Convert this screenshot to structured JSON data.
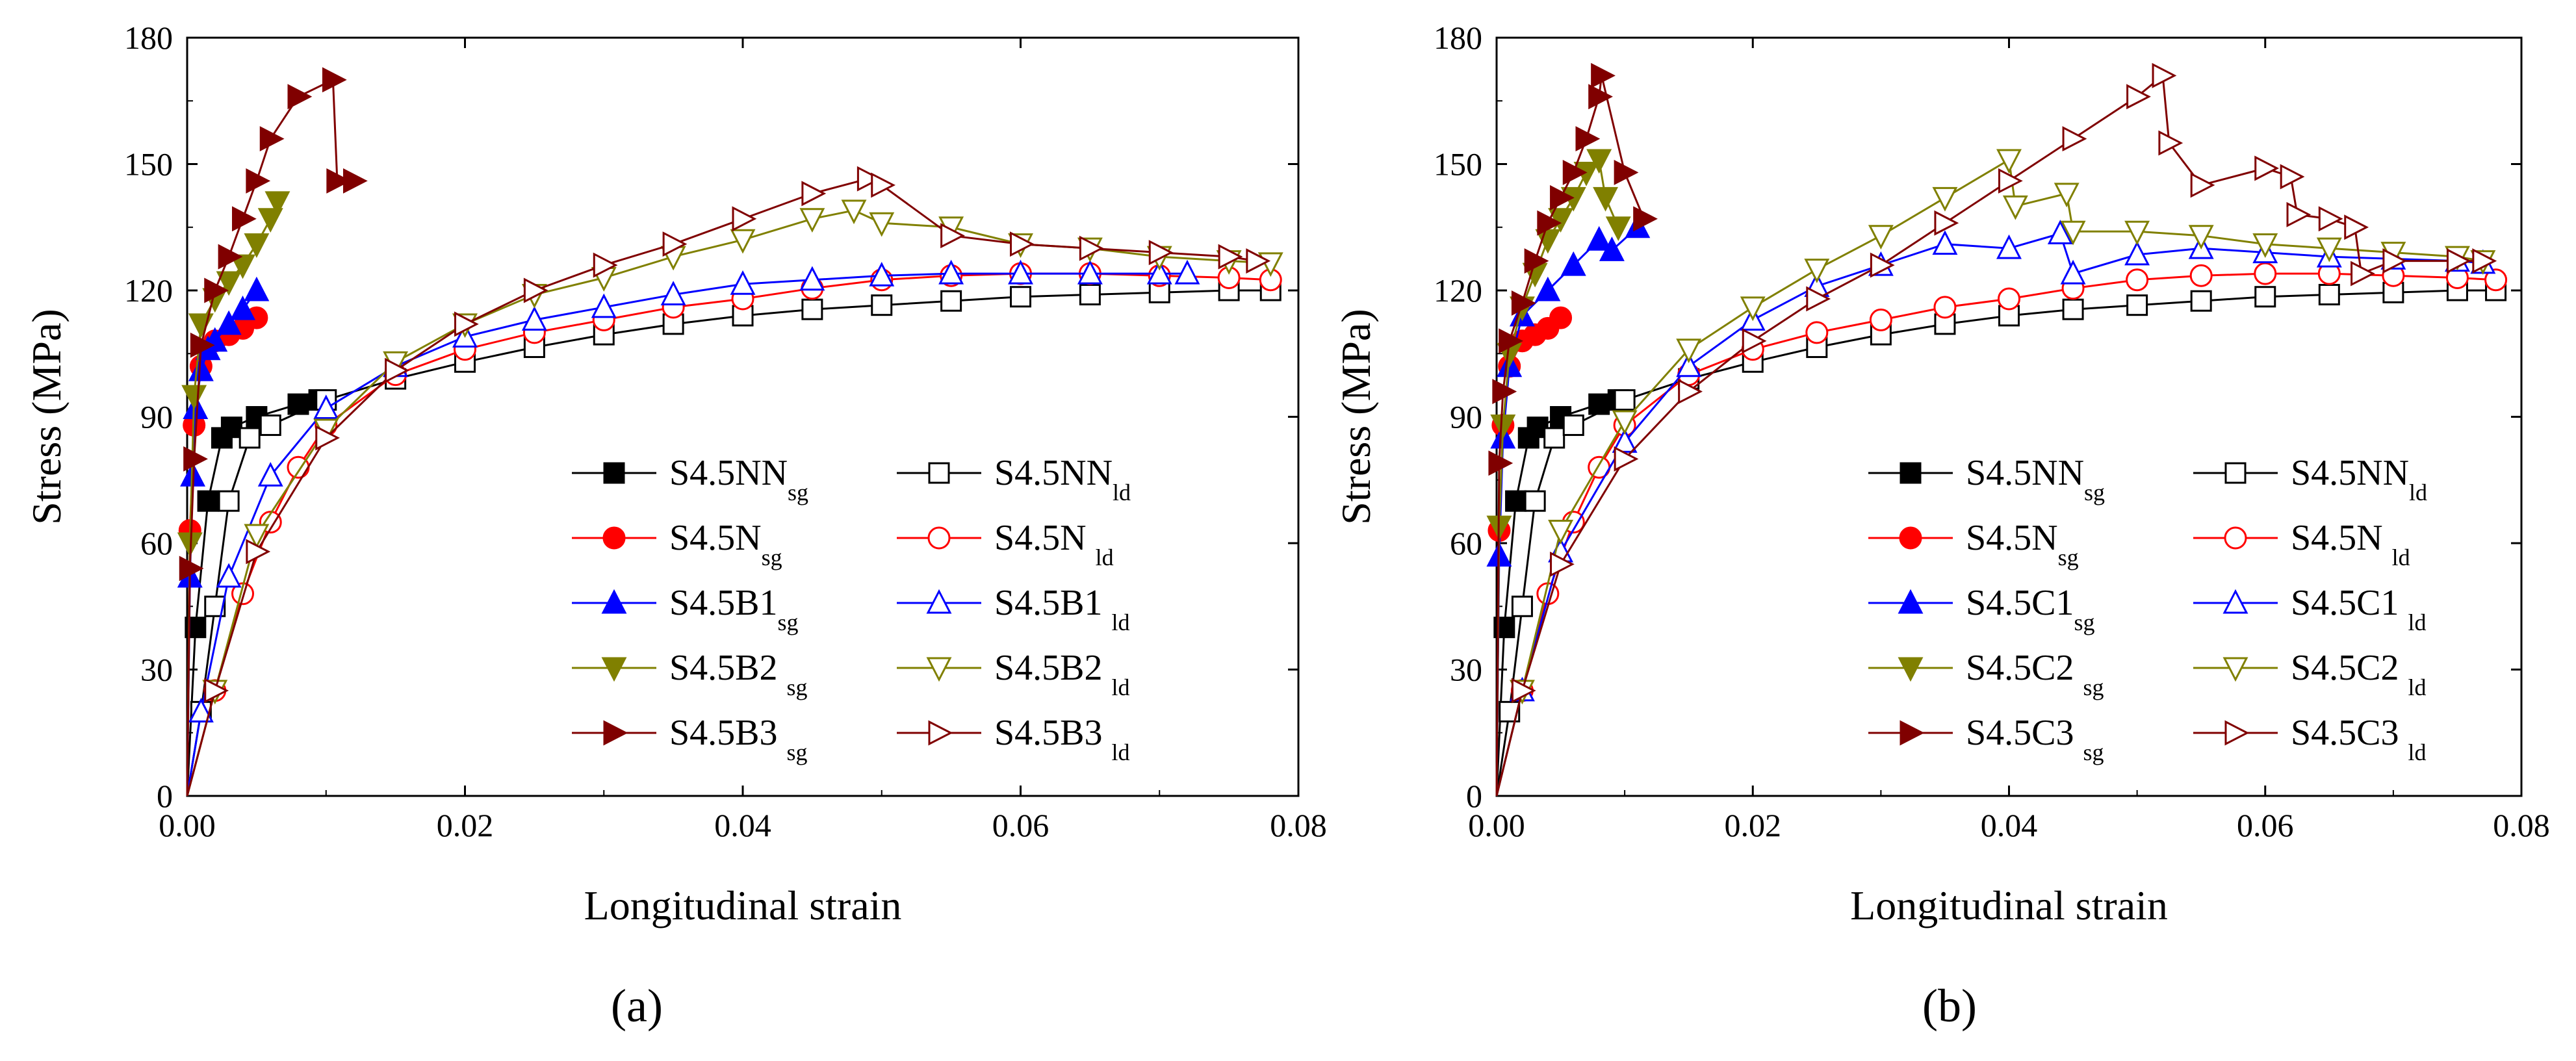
{
  "chart_data": [
    {
      "type": "line",
      "panel_label": "(a)",
      "xlabel": "Longitudinal strain",
      "ylabel": "Stress  (MPa)",
      "xlim": [
        0,
        0.08
      ],
      "ylim": [
        0,
        180
      ],
      "xticks": [
        "0.00",
        "0.02",
        "0.04",
        "0.06",
        "0.08"
      ],
      "yticks": [
        "0",
        "30",
        "60",
        "90",
        "120",
        "150",
        "180"
      ],
      "grid": false,
      "legend_position": "lower-right",
      "series": [
        {
          "name": "S4.5NN",
          "sub": "sg",
          "color": "#000000",
          "marker": "square",
          "filled": true,
          "x": [
            0,
            0.0006,
            0.0015,
            0.0025,
            0.0032,
            0.005,
            0.008,
            0.0095
          ],
          "y": [
            0,
            40,
            70,
            85,
            87.5,
            90,
            93,
            94
          ]
        },
        {
          "name": "S4.5NN",
          "sub": "ld",
          "color": "#000000",
          "marker": "square",
          "filled": false,
          "x": [
            0,
            0.001,
            0.002,
            0.003,
            0.0045,
            0.006,
            0.01,
            0.015,
            0.02,
            0.025,
            0.03,
            0.035,
            0.04,
            0.045,
            0.05,
            0.055,
            0.06,
            0.065,
            0.07,
            0.075,
            0.078
          ],
          "y": [
            0,
            20,
            45,
            70,
            85,
            88,
            94,
            99,
            103,
            106.5,
            109.5,
            112,
            114,
            115.5,
            116.5,
            117.5,
            118.5,
            119,
            119.5,
            120,
            120
          ]
        },
        {
          "name": "S4.5N",
          "sub": "sg",
          "color": "#ff0000",
          "marker": "circle",
          "filled": true,
          "x": [
            0,
            0.0002,
            0.0005,
            0.001,
            0.002,
            0.003,
            0.004,
            0.005
          ],
          "y": [
            0,
            63,
            88,
            102,
            108,
            109.5,
            111,
            113.5
          ]
        },
        {
          "name": "S4.5N",
          "sub": "ld",
          "color": "#ff0000",
          "marker": "circle",
          "filled": false,
          "x": [
            0,
            0.002,
            0.004,
            0.006,
            0.008,
            0.01,
            0.015,
            0.02,
            0.025,
            0.03,
            0.035,
            0.04,
            0.045,
            0.05,
            0.055,
            0.06,
            0.065,
            0.07,
            0.075,
            0.078
          ],
          "y": [
            0,
            25,
            48,
            65,
            78,
            88,
            100,
            106,
            110,
            113,
            116,
            118,
            120.5,
            122.5,
            123.5,
            124,
            124,
            123.5,
            123,
            122.5
          ]
        },
        {
          "name": "S4.5B1",
          "sub": "sg",
          "color": "#0000ff",
          "marker": "triangle-up",
          "filled": true,
          "x": [
            0,
            0.0002,
            0.0004,
            0.0006,
            0.001,
            0.0015,
            0.002,
            0.003,
            0.004,
            0.005
          ],
          "y": [
            0,
            52,
            76,
            92,
            101,
            106,
            108,
            112,
            115.5,
            120
          ]
        },
        {
          "name": "S4.5B1",
          "sub": "ld",
          "color": "#0000ff",
          "marker": "triangle-up",
          "filled": false,
          "x": [
            0,
            0.001,
            0.003,
            0.006,
            0.01,
            0.015,
            0.02,
            0.025,
            0.03,
            0.035,
            0.04,
            0.045,
            0.05,
            0.055,
            0.06,
            0.065,
            0.07,
            0.072
          ],
          "y": [
            0,
            20,
            52,
            76,
            92,
            102,
            109,
            113,
            116,
            119,
            121.5,
            122.5,
            123.5,
            124,
            124,
            124,
            124,
            124
          ]
        },
        {
          "name": "S4.5B2",
          "sub": "sg",
          "color": "#808000",
          "marker": "triangle-down",
          "filled": true,
          "x": [
            0,
            0.0002,
            0.0005,
            0.001,
            0.002,
            0.003,
            0.004,
            0.005,
            0.006,
            0.0065
          ],
          "y": [
            0,
            60,
            95,
            112,
            118,
            122,
            126,
            131,
            137,
            141
          ]
        },
        {
          "name": "S4.5B2",
          "sub": "ld",
          "color": "#808000",
          "marker": "triangle-down",
          "filled": false,
          "x": [
            0,
            0.002,
            0.005,
            0.01,
            0.015,
            0.02,
            0.025,
            0.03,
            0.035,
            0.04,
            0.045,
            0.048,
            0.05,
            0.055,
            0.06,
            0.065,
            0.07,
            0.075,
            0.078
          ],
          "y": [
            0,
            25,
            62,
            87,
            103,
            112,
            119,
            123,
            128,
            132,
            137,
            139,
            136,
            135,
            131,
            130,
            128,
            127,
            126.5
          ]
        },
        {
          "name": "S4.5B3",
          "sub": "sg",
          "color": "#800000",
          "marker": "triangle-right",
          "filled": true,
          "x": [
            0,
            0.0002,
            0.0005,
            0.001,
            0.002,
            0.003,
            0.004,
            0.005,
            0.006,
            0.008,
            0.0105,
            0.0108,
            0.012
          ],
          "y": [
            0,
            54,
            80,
            107,
            120,
            128,
            137,
            146,
            156,
            166,
            170,
            146,
            146
          ]
        },
        {
          "name": "S4.5B3",
          "sub": "ld",
          "color": "#800000",
          "marker": "triangle-right",
          "filled": false,
          "x": [
            0,
            0.002,
            0.005,
            0.01,
            0.015,
            0.02,
            0.025,
            0.03,
            0.035,
            0.04,
            0.045,
            0.049,
            0.05,
            0.055,
            0.06,
            0.065,
            0.07,
            0.075,
            0.077
          ],
          "y": [
            0,
            25,
            58,
            85,
            101,
            112,
            120,
            126,
            131,
            137,
            143,
            146.5,
            145,
            133,
            131,
            130,
            129,
            128,
            127
          ]
        }
      ],
      "legend": [
        {
          "label": "S4.5NN",
          "sub": "sg"
        },
        {
          "label": "S4.5NN",
          "sub": "ld"
        },
        {
          "label": "S4.5N",
          "sub": "sg"
        },
        {
          "label": "S4.5N ",
          "sub": "ld"
        },
        {
          "label": "S4.5B1",
          "sub": "sg"
        },
        {
          "label": "S4.5B1 ",
          "sub": "ld"
        },
        {
          "label": "S4.5B2 ",
          "sub": "sg"
        },
        {
          "label": "S4.5B2 ",
          "sub": "ld"
        },
        {
          "label": "S4.5B3 ",
          "sub": "sg"
        },
        {
          "label": "S4.5B3 ",
          "sub": "ld"
        }
      ]
    },
    {
      "type": "line",
      "panel_label": "(b)",
      "xlabel": "Longitudinal strain",
      "ylabel": "Stress  (MPa)",
      "xlim": [
        0,
        0.08
      ],
      "ylim": [
        0,
        180
      ],
      "xticks": [
        "0.00",
        "0.02",
        "0.04",
        "0.06",
        "0.08"
      ],
      "yticks": [
        "0",
        "30",
        "60",
        "90",
        "120",
        "150",
        "180"
      ],
      "grid": false,
      "legend_position": "lower-right",
      "series": [
        {
          "name": "S4.5NN",
          "sub": "sg",
          "color": "#000000",
          "marker": "square",
          "filled": true,
          "x": [
            0,
            0.0006,
            0.0015,
            0.0025,
            0.0032,
            0.005,
            0.008,
            0.0095
          ],
          "y": [
            0,
            40,
            70,
            85,
            87.5,
            90,
            93,
            94
          ]
        },
        {
          "name": "S4.5NN",
          "sub": "ld",
          "color": "#000000",
          "marker": "square",
          "filled": false,
          "x": [
            0,
            0.001,
            0.002,
            0.003,
            0.0045,
            0.006,
            0.01,
            0.015,
            0.02,
            0.025,
            0.03,
            0.035,
            0.04,
            0.045,
            0.05,
            0.055,
            0.06,
            0.065,
            0.07,
            0.075,
            0.078
          ],
          "y": [
            0,
            20,
            45,
            70,
            85,
            88,
            94,
            99,
            103,
            106.5,
            109.5,
            112,
            114,
            115.5,
            116.5,
            117.5,
            118.5,
            119,
            119.5,
            120,
            120
          ]
        },
        {
          "name": "S4.5N",
          "sub": "sg",
          "color": "#ff0000",
          "marker": "circle",
          "filled": true,
          "x": [
            0,
            0.0002,
            0.0005,
            0.001,
            0.002,
            0.003,
            0.004,
            0.005
          ],
          "y": [
            0,
            63,
            88,
            102,
            108,
            109.5,
            111,
            113.5
          ]
        },
        {
          "name": "S4.5N",
          "sub": "ld",
          "color": "#ff0000",
          "marker": "circle",
          "filled": false,
          "x": [
            0,
            0.002,
            0.004,
            0.006,
            0.008,
            0.01,
            0.015,
            0.02,
            0.025,
            0.03,
            0.035,
            0.04,
            0.045,
            0.05,
            0.055,
            0.06,
            0.065,
            0.07,
            0.075,
            0.078
          ],
          "y": [
            0,
            25,
            48,
            65,
            78,
            88,
            100,
            106,
            110,
            113,
            116,
            118,
            120.5,
            122.5,
            123.5,
            124,
            124,
            123.5,
            123,
            122.5
          ]
        },
        {
          "name": "S4.5C1",
          "sub": "sg",
          "color": "#0000ff",
          "marker": "triangle-up",
          "filled": true,
          "x": [
            0,
            0.0002,
            0.0005,
            0.001,
            0.002,
            0.004,
            0.006,
            0.008,
            0.009,
            0.011
          ],
          "y": [
            0,
            57,
            85,
            102,
            114,
            120,
            126,
            132,
            129.5,
            135
          ]
        },
        {
          "name": "S4.5C1",
          "sub": "ld",
          "color": "#0000ff",
          "marker": "triangle-up",
          "filled": false,
          "x": [
            0,
            0.002,
            0.005,
            0.01,
            0.015,
            0.02,
            0.025,
            0.03,
            0.035,
            0.04,
            0.044,
            0.045,
            0.05,
            0.055,
            0.06,
            0.065,
            0.07,
            0.075,
            0.077
          ],
          "y": [
            0,
            25,
            58,
            84,
            102,
            113,
            121,
            126,
            131,
            130,
            133.5,
            124,
            128.5,
            130,
            129,
            128,
            127.5,
            127,
            126.5
          ]
        },
        {
          "name": "S4.5C2",
          "sub": "sg",
          "color": "#808000",
          "marker": "triangle-down",
          "filled": true,
          "x": [
            0,
            0.0002,
            0.0005,
            0.001,
            0.002,
            0.003,
            0.004,
            0.005,
            0.006,
            0.007,
            0.008,
            0.0085,
            0.0095
          ],
          "y": [
            0,
            64,
            88,
            105,
            116,
            124,
            132,
            137,
            142,
            148,
            151,
            142,
            135
          ]
        },
        {
          "name": "S4.5C2",
          "sub": "ld",
          "color": "#808000",
          "marker": "triangle-down",
          "filled": false,
          "x": [
            0,
            0.002,
            0.005,
            0.01,
            0.015,
            0.02,
            0.025,
            0.03,
            0.035,
            0.04,
            0.0405,
            0.0445,
            0.045,
            0.05,
            0.055,
            0.06,
            0.065,
            0.07,
            0.075,
            0.077
          ],
          "y": [
            0,
            25,
            63,
            89,
            106,
            116,
            125,
            133,
            142,
            151,
            140,
            143,
            134,
            134,
            133,
            131,
            130,
            129,
            128,
            127
          ]
        },
        {
          "name": "S4.5C3",
          "sub": "sg",
          "color": "#800000",
          "marker": "triangle-right",
          "filled": true,
          "x": [
            0,
            0.0002,
            0.0005,
            0.001,
            0.002,
            0.003,
            0.004,
            0.005,
            0.006,
            0.007,
            0.008,
            0.0082,
            0.01,
            0.0115
          ],
          "y": [
            0,
            79,
            96,
            108,
            117,
            127,
            136,
            142,
            148,
            156,
            166,
            171,
            148,
            137
          ]
        },
        {
          "name": "S4.5C3",
          "sub": "ld",
          "color": "#800000",
          "marker": "triangle-right",
          "filled": false,
          "x": [
            0,
            0.002,
            0.005,
            0.01,
            0.015,
            0.02,
            0.025,
            0.03,
            0.035,
            0.04,
            0.045,
            0.05,
            0.052,
            0.0525,
            0.055,
            0.06,
            0.062,
            0.0625,
            0.065,
            0.067,
            0.0675,
            0.07,
            0.075,
            0.077
          ],
          "y": [
            0,
            25,
            55,
            80,
            96,
            108,
            118,
            126,
            136,
            146,
            156,
            166,
            171,
            155,
            145,
            149,
            147,
            138,
            137,
            135,
            124,
            127,
            127,
            127
          ]
        }
      ],
      "legend": [
        {
          "label": "S4.5NN",
          "sub": "sg"
        },
        {
          "label": "S4.5NN",
          "sub": "ld"
        },
        {
          "label": "S4.5N",
          "sub": "sg"
        },
        {
          "label": "S4.5N ",
          "sub": "ld"
        },
        {
          "label": "S4.5C1",
          "sub": "sg"
        },
        {
          "label": "S4.5C1 ",
          "sub": "ld"
        },
        {
          "label": "S4.5C2 ",
          "sub": "sg"
        },
        {
          "label": "S4.5C2 ",
          "sub": "ld"
        },
        {
          "label": "S4.5C3 ",
          "sub": "sg"
        },
        {
          "label": "S4.5C3 ",
          "sub": "ld"
        }
      ]
    }
  ]
}
